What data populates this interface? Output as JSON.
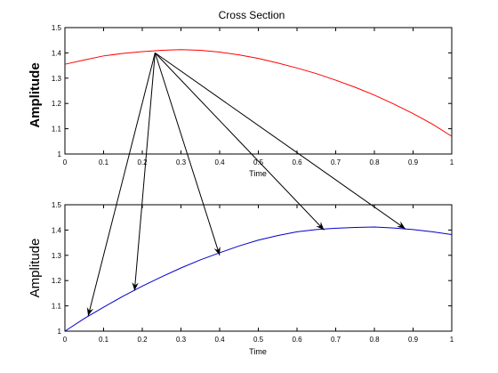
{
  "title": "Cross Section",
  "chart_data": [
    {
      "type": "line",
      "xlabel": "Time",
      "ylabel": "Amplitude",
      "xlim": [
        0,
        1
      ],
      "ylim": [
        1,
        1.5
      ],
      "grid": false,
      "x_ticks": [
        "0",
        "0.1",
        "0.2",
        "0.3",
        "0.4",
        "0.5",
        "0.6",
        "0.7",
        "0.8",
        "0.9",
        "1"
      ],
      "y_ticks": [
        "1",
        "1.1",
        "1.2",
        "1.3",
        "1.4",
        "1.5"
      ],
      "series": [
        {
          "color": "#ff0000",
          "x": [
            0,
            0.05,
            0.1,
            0.15,
            0.2,
            0.25,
            0.3,
            0.35,
            0.4,
            0.45,
            0.5,
            0.55,
            0.6,
            0.65,
            0.7,
            0.75,
            0.8,
            0.85,
            0.9,
            0.95,
            1.0
          ],
          "y": [
            1.355,
            1.372,
            1.388,
            1.398,
            1.405,
            1.41,
            1.413,
            1.41,
            1.403,
            1.392,
            1.378,
            1.36,
            1.34,
            1.318,
            1.292,
            1.264,
            1.233,
            1.198,
            1.16,
            1.118,
            1.07
          ]
        }
      ]
    },
    {
      "type": "line",
      "xlabel": "Time",
      "ylabel": "Amplitude",
      "xlim": [
        0,
        1
      ],
      "ylim": [
        1,
        1.5
      ],
      "grid": false,
      "x_ticks": [
        "0",
        "0.1",
        "0.2",
        "0.3",
        "0.4",
        "0.5",
        "0.6",
        "0.7",
        "0.8",
        "0.9",
        "1"
      ],
      "y_ticks": [
        "1",
        "1.1",
        "1.2",
        "1.3",
        "1.4",
        "1.5"
      ],
      "series": [
        {
          "color": "#0000cc",
          "x": [
            0,
            0.05,
            0.1,
            0.15,
            0.2,
            0.25,
            0.3,
            0.35,
            0.4,
            0.45,
            0.5,
            0.55,
            0.6,
            0.65,
            0.7,
            0.75,
            0.8,
            0.85,
            0.9,
            0.95,
            1.0
          ],
          "y": [
            1.0,
            1.05,
            1.095,
            1.138,
            1.178,
            1.215,
            1.25,
            1.282,
            1.31,
            1.337,
            1.36,
            1.378,
            1.393,
            1.402,
            1.407,
            1.41,
            1.412,
            1.408,
            1.402,
            1.393,
            1.382
          ]
        }
      ]
    }
  ],
  "arrows": {
    "source": {
      "x": 0.233,
      "y": 1.4
    },
    "targets": [
      {
        "x": 0.06,
        "y": 1.06
      },
      {
        "x": 0.18,
        "y": 1.16
      },
      {
        "x": 0.4,
        "y": 1.3
      },
      {
        "x": 0.67,
        "y": 1.4
      },
      {
        "x": 0.88,
        "y": 1.405
      }
    ]
  }
}
